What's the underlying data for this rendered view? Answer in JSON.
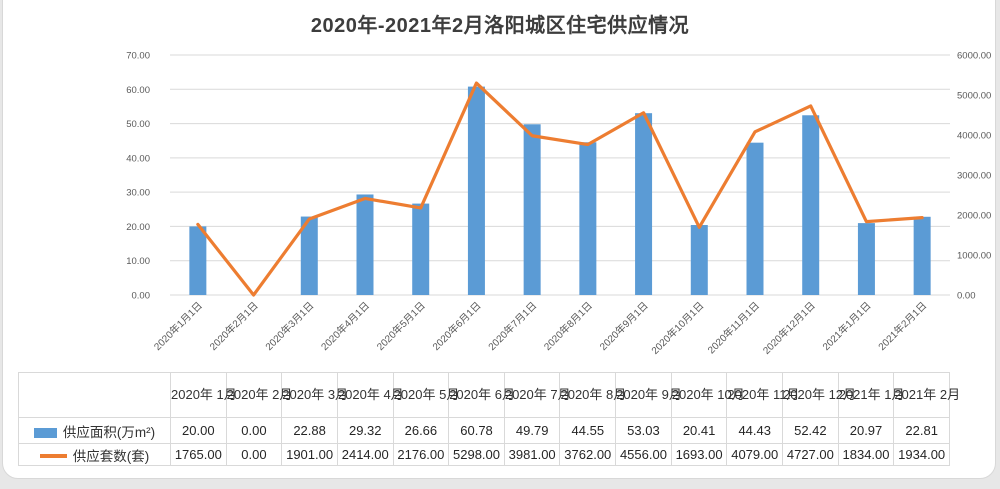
{
  "chart_data": {
    "type": "combo",
    "title": "2020年-2021年2月洛阳城区住宅供应情况",
    "categories": [
      "2020年1月1日",
      "2020年2月1日",
      "2020年3月1日",
      "2020年4月1日",
      "2020年5月1日",
      "2020年6月1日",
      "2020年7月1日",
      "2020年8月1日",
      "2020年9月1日",
      "2020年10月1日",
      "2020年11月1日",
      "2020年12月1日",
      "2021年1月1日",
      "2021年2月1日"
    ],
    "series": [
      {
        "name": "供应面积(万m²)",
        "type": "bar",
        "axis": "left",
        "values": [
          20.0,
          0.0,
          22.88,
          29.32,
          26.66,
          60.78,
          49.79,
          44.55,
          53.03,
          20.41,
          44.43,
          52.42,
          20.97,
          22.81
        ]
      },
      {
        "name": "供应套数(套)",
        "type": "line",
        "axis": "right",
        "values": [
          1765,
          0,
          1901,
          2414,
          2176,
          5298,
          3981,
          3762,
          4556,
          1693,
          4079,
          4727,
          1834,
          1934
        ]
      }
    ],
    "left_axis": {
      "min": 0,
      "max": 70,
      "step": 10,
      "tick_labels": [
        "0.00",
        "10.00",
        "20.00",
        "30.00",
        "40.00",
        "50.00",
        "60.00",
        "70.00"
      ]
    },
    "right_axis": {
      "min": 0,
      "max": 6000,
      "step": 1000,
      "tick_labels": [
        "0.00",
        "1000.00",
        "2000.00",
        "3000.00",
        "4000.00",
        "5000.00",
        "6000.00"
      ]
    },
    "grid": true,
    "legend_position": "data-table"
  },
  "table": {
    "col_headers": [
      "2020年\n1月",
      "2020年\n2月",
      "2020年\n3月",
      "2020年\n4月",
      "2020年\n5月",
      "2020年\n6月",
      "2020年\n7月",
      "2020年\n8月",
      "2020年\n9月",
      "2020年\n10月",
      "2020年\n11月",
      "2020年\n12月",
      "2021年\n1月",
      "2021年\n2月"
    ],
    "rows": [
      {
        "label": "供应面积(万m²)",
        "key": "bar",
        "values": [
          "20.00",
          "0.00",
          "22.88",
          "29.32",
          "26.66",
          "60.78",
          "49.79",
          "44.55",
          "53.03",
          "20.41",
          "44.43",
          "52.42",
          "20.97",
          "22.81"
        ]
      },
      {
        "label": "供应套数(套)",
        "key": "line",
        "values": [
          "1765.00",
          "0.00",
          "1901.00",
          "2414.00",
          "2176.00",
          "5298.00",
          "3981.00",
          "3762.00",
          "4556.00",
          "1693.00",
          "4079.00",
          "4727.00",
          "1834.00",
          "1934.00"
        ]
      }
    ]
  },
  "colors": {
    "bar": "#5B9BD5",
    "line": "#ED7D31",
    "grid": "#D9D9D9",
    "axis_text": "#595959",
    "title_text": "#3D3D3D",
    "table_border": "#D9D9D9"
  }
}
